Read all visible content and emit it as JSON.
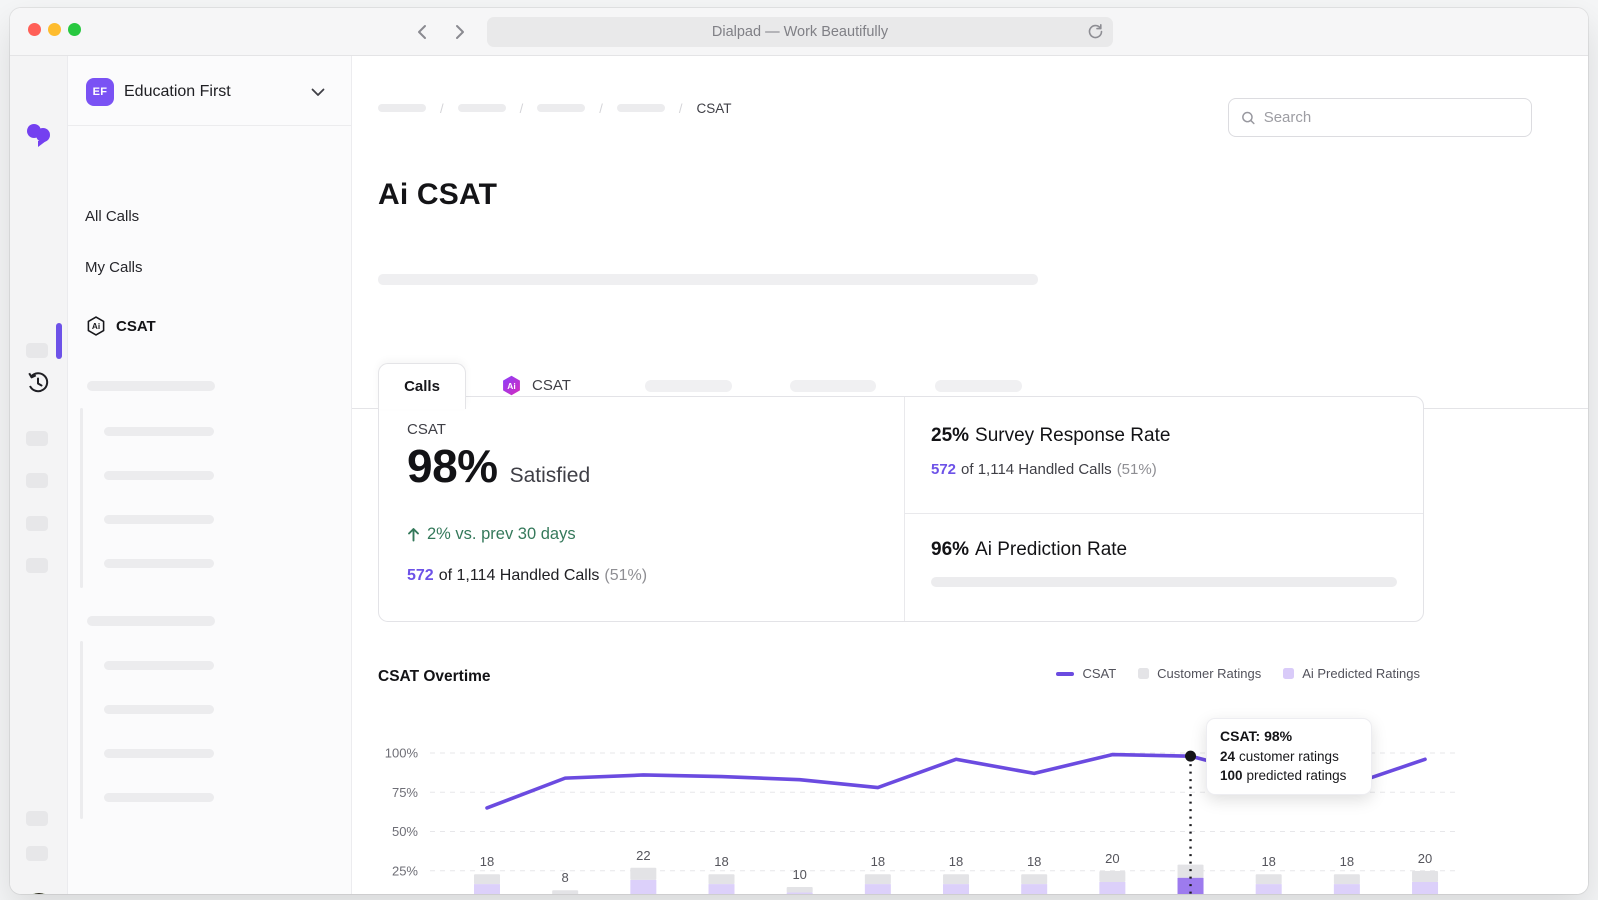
{
  "colors": {
    "accent_purple": "#6b4be0",
    "brand_purple": "#7440f0",
    "link_purple": "#6d52e8",
    "positive_green": "#35795b",
    "bar_fill": "#dcd0fa",
    "bar_fill_highlight": "#9d7bee",
    "bar_cap": "#e3e3e6",
    "legend_customer": "#e4e4e7",
    "legend_predicted": "#d9cbf9"
  },
  "icons": {
    "ai_mark": "Ai"
  },
  "browser": {
    "title": "Dialpad — Work Beautifully"
  },
  "workspace": {
    "initials": "EF",
    "name": "Education First"
  },
  "nav": {
    "items": [
      {
        "label": "All Calls"
      },
      {
        "label": "My Calls"
      },
      {
        "label": "CSAT"
      }
    ]
  },
  "breadcrumb": {
    "separator": "/",
    "current": "CSAT"
  },
  "search": {
    "placeholder": "Search"
  },
  "page": {
    "title": "Ai CSAT"
  },
  "tabs": {
    "calls": "Calls",
    "csat": "CSAT"
  },
  "stats": {
    "csat_label": "CSAT",
    "csat_value": "98%",
    "csat_suffix": "Satisfied",
    "trend": "2% vs. prev 30 days",
    "handled_count": "572",
    "handled_text": "of 1,114 Handled Calls",
    "handled_pct": "(51%)",
    "survey_value": "25%",
    "survey_label": "Survey Response Rate",
    "prediction_value": "96%",
    "prediction_label": "Ai Prediction Rate"
  },
  "chart": {
    "title": "CSAT Overtime",
    "legend": [
      {
        "label": "CSAT"
      },
      {
        "label": "Customer Ratings"
      },
      {
        "label": "Ai Predicted Ratings"
      }
    ]
  },
  "tooltip": {
    "title": "CSAT: 98%",
    "customer_value": "24",
    "customer_label": "customer ratings",
    "predicted_value": "100",
    "predicted_label": "predicted ratings"
  },
  "chart_data": {
    "type": "line+stacked-bar",
    "title": "CSAT Overtime",
    "legend_position": "top-right",
    "y_axis": {
      "ticks": [
        "100%",
        "75%",
        "50%",
        "25%"
      ],
      "range": [
        0,
        100
      ],
      "gridlines": "dashed"
    },
    "x_axis": {
      "points": 13,
      "labels_visible": false,
      "note": "bars clipped at bottom edge of viewport"
    },
    "series": [
      {
        "name": "CSAT",
        "type": "line",
        "unit": "%",
        "values": [
          65,
          84,
          86,
          85,
          83,
          78,
          96,
          87,
          99,
          98,
          85,
          79,
          96
        ]
      },
      {
        "name": "Customer Ratings",
        "type": "bar",
        "values": [
          18,
          8,
          22,
          18,
          10,
          18,
          18,
          18,
          20,
          24,
          18,
          18,
          20
        ]
      }
    ],
    "bar_labels": [
      "18",
      "8",
      "22",
      "18",
      "10",
      "18",
      "18",
      "18",
      "20",
      null,
      "18",
      "18",
      "20"
    ],
    "highlight_index": 9,
    "highlight_tooltip": {
      "csat": "98%",
      "customer_ratings": 24,
      "predicted_ratings": 100
    }
  }
}
